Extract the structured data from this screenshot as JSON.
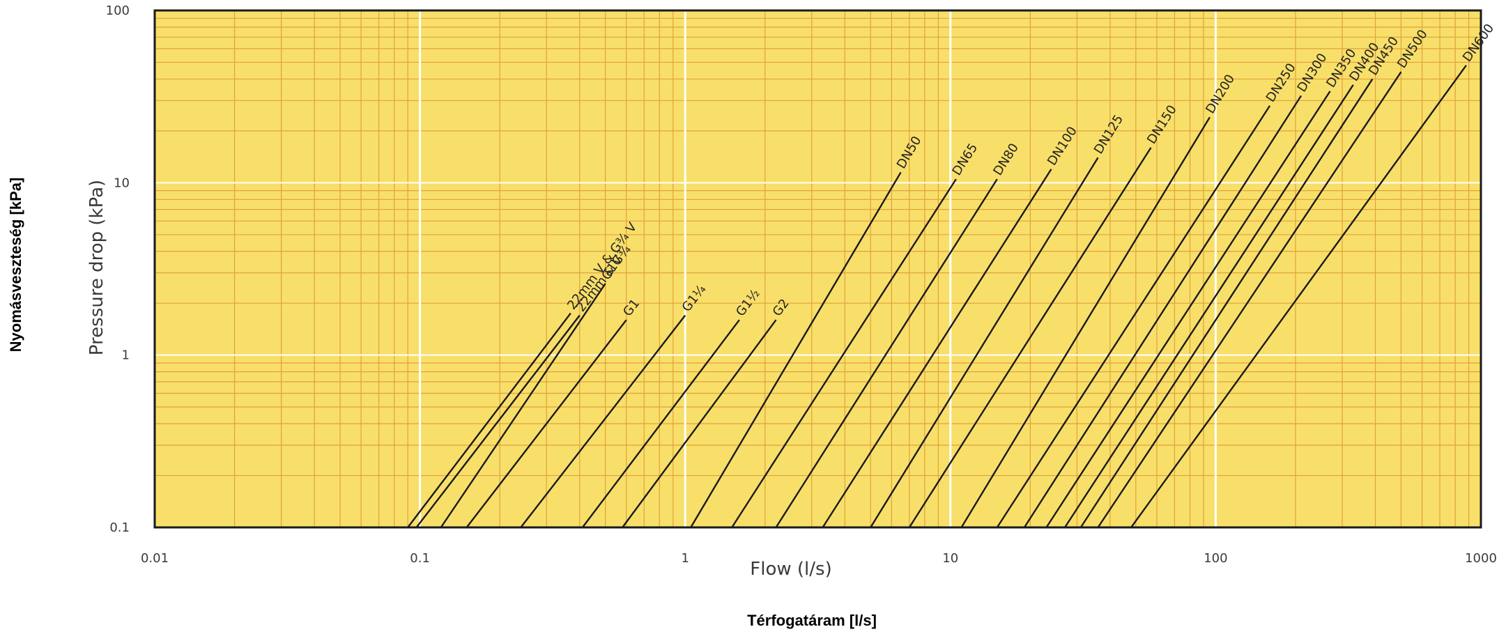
{
  "colors": {
    "plot_background": "#f8df6a",
    "grid_minor": "#e2a13a",
    "grid_decade": "#ffffff",
    "series_line": "#1a1a1a",
    "axis_text": "#3a3a3a"
  },
  "outer_labels": {
    "x_title": "Térfogatáram [l/s]",
    "y_title": "Nyomásveszteség [kPa]"
  },
  "chart_data": {
    "type": "line",
    "title": "",
    "xlabel": "Flow (l/s)",
    "ylabel": "Pressure drop (kPa)",
    "xscale": "log",
    "yscale": "log",
    "xlim": [
      0.01,
      1000
    ],
    "ylim": [
      0.1,
      100
    ],
    "grid": true,
    "xticks": [
      "0.01",
      "0.1",
      "1",
      "10",
      "100",
      "1000"
    ],
    "yticks": [
      "0.1",
      "1",
      "10",
      "100"
    ],
    "series": [
      {
        "name": "22mm V & G¾ V",
        "x": [
          0.09,
          0.37
        ],
        "y": [
          0.1,
          1.75
        ]
      },
      {
        "name": "22mm & G¾",
        "x": [
          0.097,
          0.4
        ],
        "y": [
          0.1,
          1.7
        ]
      },
      {
        "name": "G1V",
        "x": [
          0.12,
          0.5
        ],
        "y": [
          0.1,
          2.6
        ]
      },
      {
        "name": "G1",
        "x": [
          0.15,
          0.6
        ],
        "y": [
          0.1,
          1.6
        ]
      },
      {
        "name": "G1¼",
        "x": [
          0.24,
          1.0
        ],
        "y": [
          0.1,
          1.7
        ]
      },
      {
        "name": "G1½",
        "x": [
          0.41,
          1.6
        ],
        "y": [
          0.1,
          1.6
        ]
      },
      {
        "name": "G2",
        "x": [
          0.58,
          2.2
        ],
        "y": [
          0.1,
          1.6
        ]
      },
      {
        "name": "DN50",
        "x": [
          1.05,
          6.5
        ],
        "y": [
          0.1,
          11.5
        ]
      },
      {
        "name": "DN65",
        "x": [
          1.5,
          10.5
        ],
        "y": [
          0.1,
          10.5
        ]
      },
      {
        "name": "DN80",
        "x": [
          2.2,
          15
        ],
        "y": [
          0.1,
          10.5
        ]
      },
      {
        "name": "DN100",
        "x": [
          3.3,
          24
        ],
        "y": [
          0.1,
          12
        ]
      },
      {
        "name": "DN125",
        "x": [
          5,
          36
        ],
        "y": [
          0.1,
          14
        ]
      },
      {
        "name": "DN150",
        "x": [
          7,
          57
        ],
        "y": [
          0.1,
          16
        ]
      },
      {
        "name": "DN200",
        "x": [
          11,
          95
        ],
        "y": [
          0.1,
          24
        ]
      },
      {
        "name": "DN250",
        "x": [
          15,
          160
        ],
        "y": [
          0.1,
          28
        ]
      },
      {
        "name": "DN300",
        "x": [
          19,
          210
        ],
        "y": [
          0.1,
          32
        ]
      },
      {
        "name": "DN350",
        "x": [
          23,
          270
        ],
        "y": [
          0.1,
          34
        ]
      },
      {
        "name": "DN400",
        "x": [
          27,
          330
        ],
        "y": [
          0.1,
          37
        ]
      },
      {
        "name": "DN450",
        "x": [
          31,
          390
        ],
        "y": [
          0.1,
          40
        ]
      },
      {
        "name": "DN500",
        "x": [
          36,
          500
        ],
        "y": [
          0.1,
          44
        ]
      },
      {
        "name": "DN600",
        "x": [
          48,
          880
        ],
        "y": [
          0.1,
          48
        ]
      }
    ]
  }
}
